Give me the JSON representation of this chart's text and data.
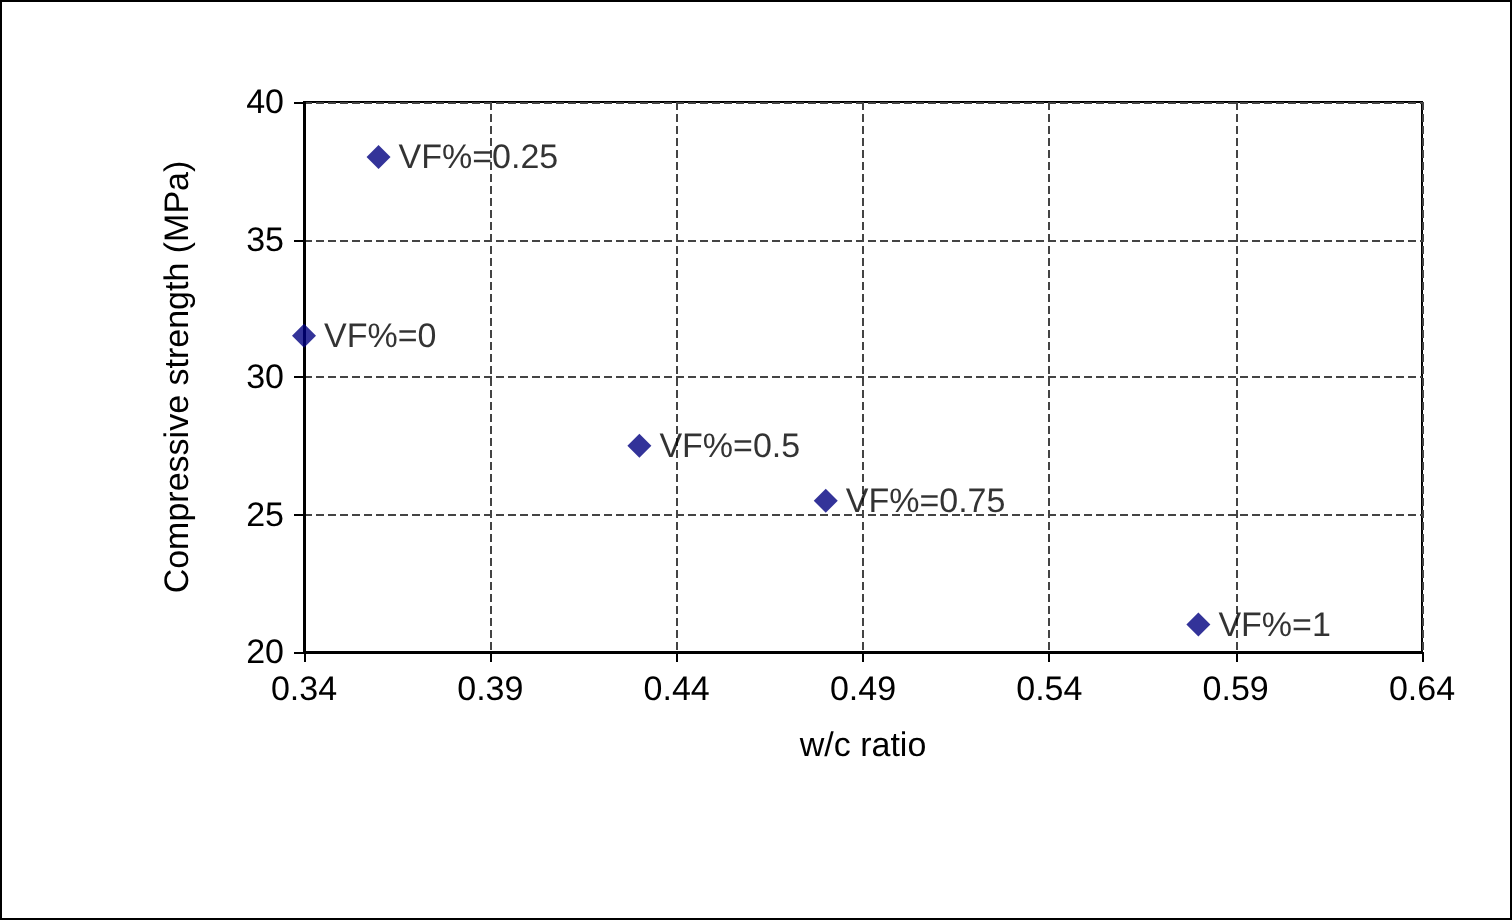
{
  "chart_data": {
    "type": "scatter",
    "xlabel": "w/c ratio",
    "ylabel": "Compressive strength (MPa)",
    "x": [
      0.34,
      0.36,
      0.43,
      0.48,
      0.58
    ],
    "values": [
      31.5,
      38,
      27.5,
      25.5,
      21
    ],
    "color": "#000080",
    "marker": "diamond",
    "xlim": [
      0.34,
      0.64
    ],
    "xticks": [
      0.34,
      0.39,
      0.44,
      0.49,
      0.54,
      0.59,
      0.64
    ],
    "ylim": [
      20,
      40
    ],
    "yticks": [
      20,
      25,
      30,
      35,
      40
    ],
    "grid": true,
    "line_style": "dashed",
    "annotations": [
      {
        "text": "VF%=0",
        "x": 0.34,
        "y": 31.5
      },
      {
        "text": "VF%=0.25",
        "x": 0.36,
        "y": 38
      },
      {
        "text": "VF%=0.5",
        "x": 0.43,
        "y": 27.5
      },
      {
        "text": "VF%=0.75",
        "x": 0.48,
        "y": 25.5
      },
      {
        "text": "VF%=1",
        "x": 0.58,
        "y": 21
      }
    ]
  }
}
